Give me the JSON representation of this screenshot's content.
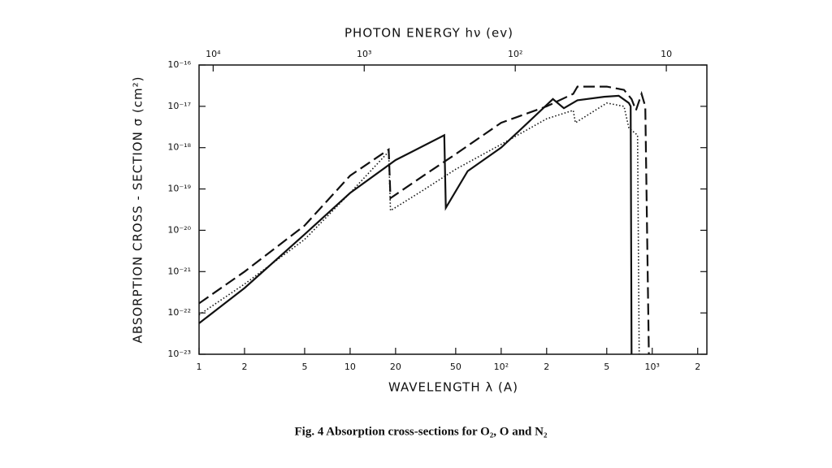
{
  "chart_data": {
    "type": "line",
    "title": "PHOTON ENERGY hν (ev)",
    "xlabel": "WAVELENGTH λ (A)",
    "ylabel": "ABSORPTION CROSS - SECTION σ (cm²)",
    "caption": "Fig. 4 Absorption cross-sections for O₂, O and N₂",
    "xscale": "log",
    "yscale": "log",
    "x2scale": "log",
    "xlim": [
      1,
      2300
    ],
    "ylim": [
      1e-23,
      1e-16
    ],
    "x2lim": [
      12398,
      5.39
    ],
    "xticks": [
      1,
      2,
      5,
      10,
      20,
      50,
      {
        "value": 100,
        "label": "10²"
      },
      {
        "value": 200,
        "label": "2"
      },
      {
        "value": 500,
        "label": "5"
      },
      {
        "value": 1000,
        "label": "10³"
      },
      {
        "value": 2000,
        "label": "2"
      }
    ],
    "x2ticks": [
      {
        "value": 10000,
        "label": "10⁴"
      },
      {
        "value": 1000,
        "label": "10³"
      },
      {
        "value": 100,
        "label": "10²"
      },
      10
    ],
    "yticks": [
      {
        "value": 1e-23,
        "label": "10⁻²³"
      },
      {
        "value": 1e-22,
        "label": "10⁻²²"
      },
      {
        "value": 1e-21,
        "label": "10⁻²¹"
      },
      {
        "value": 1e-20,
        "label": "10⁻²⁰"
      },
      {
        "value": 1e-19,
        "label": "10⁻¹⁹"
      },
      {
        "value": 1e-18,
        "label": "10⁻¹⁸"
      },
      {
        "value": 1e-17,
        "label": "10⁻¹⁷"
      },
      {
        "value": 1e-16,
        "label": "10⁻¹⁶"
      }
    ],
    "series": [
      {
        "color": "#111111",
        "style": "solid",
        "x": [
          1,
          2,
          5,
          10,
          20,
          42,
          43,
          60,
          100,
          150,
          220,
          260,
          320,
          480,
          600,
          700,
          720,
          730
        ],
        "values": [
          5.6e-23,
          4e-22,
          8e-21,
          8e-20,
          5e-19,
          2e-18,
          3.5e-20,
          2.7e-19,
          1e-18,
          4e-18,
          1.5e-17,
          9e-18,
          1.4e-17,
          1.7e-17,
          1.8e-17,
          1.2e-17,
          1e-17,
          1e-23
        ]
      },
      {
        "color": "#111111",
        "style": "dashed",
        "x": [
          1,
          2,
          5,
          10,
          18,
          18.5,
          30,
          50,
          100,
          200,
          300,
          320,
          500,
          650,
          730,
          780,
          850,
          900,
          950
        ],
        "values": [
          1.7e-22,
          1e-21,
          1.3e-20,
          2.1e-19,
          9e-19,
          6e-20,
          2e-19,
          7e-19,
          4e-18,
          1e-17,
          2e-17,
          3e-17,
          3e-17,
          2.5e-17,
          1.5e-17,
          8e-18,
          2e-17,
          1e-17,
          1e-23
        ]
      },
      {
        "color": "#111111",
        "style": "dotted",
        "x": [
          1,
          2,
          5,
          10,
          18,
          18.5,
          30,
          50,
          100,
          200,
          300,
          310,
          500,
          650,
          700,
          800,
          820
        ],
        "values": [
          9e-23,
          5e-22,
          6e-21,
          8e-20,
          8e-19,
          3e-20,
          9e-20,
          3e-19,
          1.2e-18,
          5e-18,
          8e-18,
          4e-18,
          1.2e-17,
          1e-17,
          3e-18,
          2e-18,
          1e-23
        ]
      }
    ]
  }
}
